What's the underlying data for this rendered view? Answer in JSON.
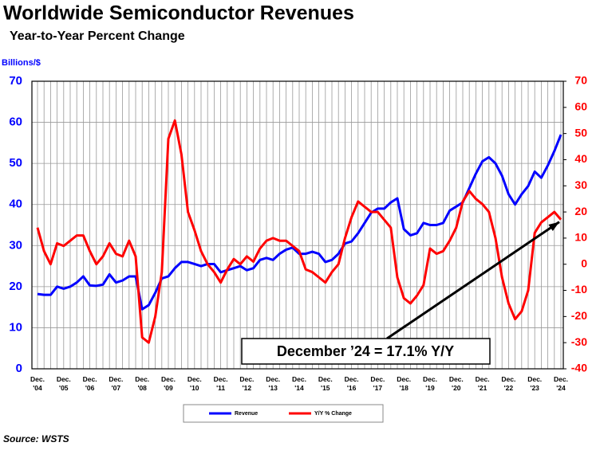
{
  "chart_data": {
    "type": "line",
    "title": "Worldwide Semiconductor Revenues",
    "subtitle": "Year-to-Year Percent Change",
    "y_label": "Billions/$",
    "annotation": "December ’24 = 17.1% Y/Y",
    "source": "Source: WSTS",
    "categories": [
      "Dec. '04",
      null,
      null,
      null,
      "Dec. '05",
      null,
      null,
      null,
      "Dec. '06",
      null,
      null,
      null,
      "Dec. '07",
      null,
      null,
      null,
      "Dec. '08",
      null,
      null,
      null,
      "Dec. '09",
      null,
      null,
      null,
      "Dec. '10",
      null,
      null,
      null,
      "Dec. '11",
      null,
      null,
      null,
      "Dec. '12",
      null,
      null,
      null,
      "Dec. '13",
      null,
      null,
      null,
      "Dec. '14",
      null,
      null,
      null,
      "Dec. '15",
      null,
      null,
      null,
      "Dec. '16",
      null,
      null,
      null,
      "Dec. '17",
      null,
      null,
      null,
      "Dec. '18",
      null,
      null,
      null,
      "Dec. '19",
      null,
      null,
      null,
      "Dec. '20",
      null,
      null,
      null,
      "Dec. '21",
      null,
      null,
      null,
      "Dec. '22",
      null,
      null,
      null,
      "Dec. '23",
      null,
      null,
      null,
      "Dec. '24"
    ],
    "series": [
      {
        "name": "Revenue",
        "color": "#0000ff",
        "values": [
          18.2,
          18,
          18,
          20,
          19.5,
          20,
          21,
          22.5,
          20.3,
          20.2,
          20.5,
          23,
          21,
          21.5,
          22.5,
          22.5,
          14.5,
          15.5,
          18.5,
          22,
          22.5,
          24.5,
          26,
          26,
          25.5,
          25,
          25.5,
          25.5,
          23.5,
          24,
          24.5,
          25,
          24,
          24.5,
          26.5,
          27,
          26.5,
          28,
          29,
          29.5,
          28,
          28,
          28.5,
          28,
          26,
          26.5,
          28,
          30.5,
          31,
          33,
          35.5,
          38,
          39,
          39,
          40.5,
          41.5,
          34,
          32.5,
          33,
          35.5,
          35,
          35,
          35.5,
          38.5,
          39.5,
          40.5,
          44,
          47.5,
          50.5,
          51.5,
          50,
          47,
          42.5,
          40,
          42.5,
          44.5,
          48,
          46.5,
          49.5,
          53,
          57
        ]
      },
      {
        "name": "Y/Y % Change",
        "color": "#ff0000",
        "axis": "y2",
        "values": [
          14,
          5,
          0,
          8,
          7,
          9,
          11,
          11,
          5,
          0,
          3,
          8,
          4,
          3,
          9,
          3,
          -28,
          -30,
          -20,
          -3,
          48,
          55,
          42,
          20,
          13,
          5,
          0,
          -3,
          -7,
          -2,
          2,
          0,
          3,
          1,
          6,
          9,
          10,
          9,
          9,
          7,
          5,
          -2,
          -3,
          -5,
          -7,
          -3,
          0,
          10,
          18,
          24,
          22,
          20,
          20,
          17,
          14,
          -5,
          -13,
          -15,
          -12,
          -8,
          6,
          4,
          5,
          9,
          14,
          24,
          28,
          25,
          23,
          20,
          10,
          -5,
          -15,
          -21,
          -18,
          -10,
          12,
          16,
          18,
          20,
          17.1
        ]
      }
    ],
    "ylim": [
      0,
      70
    ],
    "yticks": [
      0,
      10,
      20,
      30,
      40,
      50,
      60,
      70
    ],
    "y2lim": [
      -40,
      70
    ],
    "y2ticks": [
      -40,
      -30,
      -20,
      -10,
      0,
      10,
      20,
      30,
      40,
      50,
      60,
      70
    ],
    "grid": true
  }
}
